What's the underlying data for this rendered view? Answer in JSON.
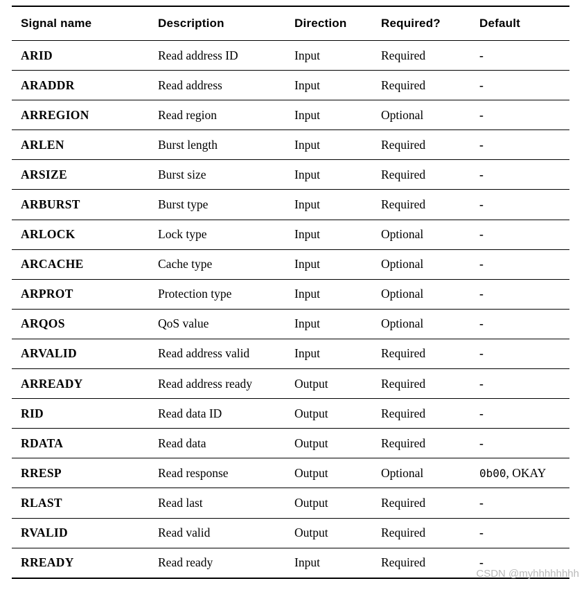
{
  "table": {
    "columns": [
      {
        "label": "Signal name"
      },
      {
        "label": "Description"
      },
      {
        "label": "Direction"
      },
      {
        "label": "Required?"
      },
      {
        "label": "Default"
      }
    ],
    "rows": [
      {
        "signal": "ARID",
        "description": "Read address ID",
        "direction": "Input",
        "required": "Required",
        "default_mono": "",
        "default_text": "-"
      },
      {
        "signal": "ARADDR",
        "description": "Read address",
        "direction": "Input",
        "required": "Required",
        "default_mono": "",
        "default_text": "-"
      },
      {
        "signal": "ARREGION",
        "description": "Read region",
        "direction": "Input",
        "required": "Optional",
        "default_mono": "",
        "default_text": "-"
      },
      {
        "signal": "ARLEN",
        "description": "Burst length",
        "direction": "Input",
        "required": "Required",
        "default_mono": "",
        "default_text": "-"
      },
      {
        "signal": "ARSIZE",
        "description": "Burst size",
        "direction": "Input",
        "required": "Required",
        "default_mono": "",
        "default_text": "-"
      },
      {
        "signal": "ARBURST",
        "description": "Burst type",
        "direction": "Input",
        "required": "Required",
        "default_mono": "",
        "default_text": "-"
      },
      {
        "signal": "ARLOCK",
        "description": "Lock type",
        "direction": "Input",
        "required": "Optional",
        "default_mono": "",
        "default_text": "-"
      },
      {
        "signal": "ARCACHE",
        "description": "Cache type",
        "direction": "Input",
        "required": "Optional",
        "default_mono": "",
        "default_text": "-"
      },
      {
        "signal": "ARPROT",
        "description": "Protection type",
        "direction": "Input",
        "required": "Optional",
        "default_mono": "",
        "default_text": "-"
      },
      {
        "signal": "ARQOS",
        "description": "QoS value",
        "direction": "Input",
        "required": "Optional",
        "default_mono": "",
        "default_text": "-"
      },
      {
        "signal": "ARVALID",
        "description": "Read address valid",
        "direction": "Input",
        "required": "Required",
        "default_mono": "",
        "default_text": "-"
      },
      {
        "signal": "ARREADY",
        "description": "Read address ready",
        "direction": "Output",
        "required": "Required",
        "default_mono": "",
        "default_text": "-"
      },
      {
        "signal": "RID",
        "description": "Read data ID",
        "direction": "Output",
        "required": "Required",
        "default_mono": "",
        "default_text": "-"
      },
      {
        "signal": "RDATA",
        "description": "Read data",
        "direction": "Output",
        "required": "Required",
        "default_mono": "",
        "default_text": "-"
      },
      {
        "signal": "RRESP",
        "description": "Read response",
        "direction": "Output",
        "required": "Optional",
        "default_mono": "0b00",
        "default_text": ", OKAY"
      },
      {
        "signal": "RLAST",
        "description": "Read last",
        "direction": "Output",
        "required": "Required",
        "default_mono": "",
        "default_text": "-"
      },
      {
        "signal": "RVALID",
        "description": "Read valid",
        "direction": "Output",
        "required": "Required",
        "default_mono": "",
        "default_text": "-"
      },
      {
        "signal": "RREADY",
        "description": "Read ready",
        "direction": "Input",
        "required": "Required",
        "default_mono": "",
        "default_text": "-"
      }
    ]
  },
  "watermark": {
    "text": "CSDN @myhhhhhhhh"
  },
  "colors": {
    "text": "#000000",
    "line": "#000000",
    "watermark": "#b9b9b9",
    "background": "#ffffff"
  }
}
